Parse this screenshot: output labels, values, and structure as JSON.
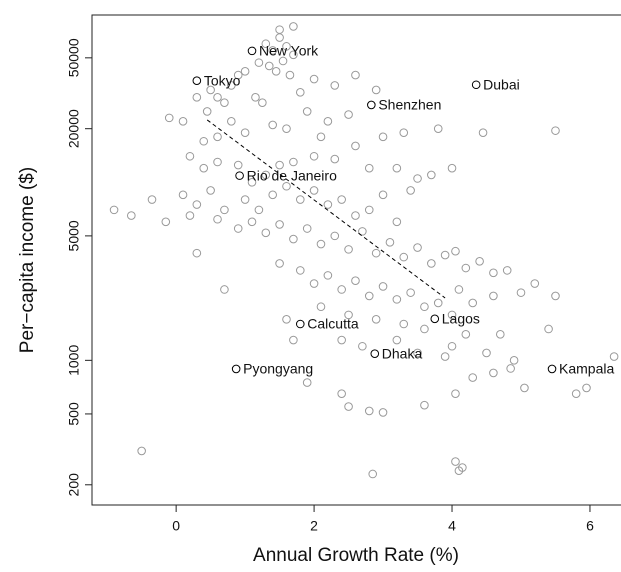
{
  "chart_data": {
    "type": "scatter",
    "x_label": "Annual Growth Rate (%)",
    "y_label": "Per−capita income ($)",
    "log_y": true,
    "xlim": [
      -1.22,
      6.45
    ],
    "ylim": [
      154,
      87000
    ],
    "xticks": [
      0,
      2,
      4,
      6
    ],
    "yticks": [
      200,
      500,
      1000,
      5000,
      20000,
      50000
    ],
    "series": [
      {
        "color": "#999999",
        "x": [
          1.3,
          1.4,
          1.5,
          1.6,
          1.55,
          1.45,
          1.65,
          1.35,
          1.2,
          1.7,
          1.0,
          0.9,
          0.8,
          1.5,
          1.7,
          1.15,
          1.25,
          0.6,
          0.5,
          0.7,
          0.45,
          0.3,
          1.8,
          2.0,
          2.3,
          2.6,
          2.9,
          1.9,
          2.2,
          2.5,
          2.1,
          1.6,
          1.4,
          1.0,
          0.8,
          0.6,
          0.4,
          -0.1,
          0.1,
          0.2,
          0.4,
          0.6,
          0.9,
          1.1,
          1.3,
          1.5,
          1.7,
          2.0,
          2.3,
          2.6,
          2.8,
          3.0,
          3.3,
          3.2,
          3.5,
          3.7,
          4.0,
          4.45,
          5.5,
          3.8,
          0.1,
          0.3,
          0.5,
          0.7,
          1.0,
          1.2,
          1.4,
          1.6,
          1.8,
          2.0,
          2.2,
          2.4,
          2.6,
          2.8,
          3.0,
          3.2,
          3.4,
          -0.9,
          -0.35,
          -0.65,
          -0.15,
          0.2,
          0.6,
          0.9,
          1.1,
          1.3,
          1.5,
          1.7,
          1.9,
          2.1,
          2.3,
          2.5,
          2.7,
          2.9,
          3.1,
          3.3,
          3.5,
          3.7,
          3.9,
          4.05,
          4.2,
          4.4,
          4.6,
          4.8,
          5.0,
          5.2,
          5.5,
          0.3,
          0.7,
          1.5,
          1.8,
          2.0,
          2.2,
          2.4,
          2.6,
          2.8,
          3.0,
          3.2,
          3.4,
          3.6,
          3.8,
          4.1,
          4.3,
          4.6,
          2.1,
          2.5,
          2.9,
          3.3,
          3.6,
          4.0,
          4.2,
          4.7,
          5.4,
          2.4,
          2.7,
          3.2,
          3.5,
          4.0,
          4.5,
          4.85,
          5.05,
          4.9,
          5.8,
          5.95,
          6.35,
          4.3,
          4.6,
          2.4,
          2.5,
          2.8,
          3.0,
          3.6,
          4.05,
          1.9,
          -0.5,
          2.85,
          4.05,
          4.15,
          4.1,
          1.6,
          1.7,
          3.9
        ],
        "values": [
          60000,
          55000,
          65000,
          58000,
          48000,
          42000,
          40000,
          45000,
          47000,
          52000,
          42000,
          40000,
          35000,
          72000,
          75000,
          30000,
          28000,
          30000,
          33000,
          28000,
          25000,
          30000,
          32000,
          38000,
          35000,
          40000,
          33000,
          25000,
          22000,
          24000,
          18000,
          20000,
          21000,
          19000,
          22000,
          18000,
          17000,
          23000,
          22000,
          14000,
          12000,
          13000,
          12500,
          10000,
          11000,
          12500,
          13000,
          14000,
          13500,
          16000,
          12000,
          18000,
          19000,
          12000,
          10500,
          11000,
          12000,
          19000,
          19500,
          20000,
          8500,
          7500,
          9000,
          7000,
          8000,
          7000,
          8500,
          9500,
          8000,
          9000,
          7500,
          8000,
          6500,
          7000,
          8500,
          6000,
          9000,
          7000,
          8000,
          6500,
          6000,
          6500,
          6200,
          5500,
          6000,
          5200,
          5800,
          4800,
          5500,
          4500,
          5000,
          4200,
          5300,
          4000,
          4600,
          3800,
          4300,
          3500,
          3900,
          4100,
          3300,
          3600,
          3100,
          3200,
          2400,
          2700,
          2300,
          4000,
          2500,
          3500,
          3200,
          2700,
          3000,
          2500,
          2800,
          2300,
          2600,
          2200,
          2400,
          2000,
          2100,
          2500,
          2100,
          2300,
          2000,
          1800,
          1700,
          1600,
          1500,
          1800,
          1400,
          1400,
          1500,
          1300,
          1200,
          1300,
          1100,
          1200,
          1100,
          900,
          700,
          1000,
          650,
          700,
          1050,
          800,
          850,
          650,
          550,
          520,
          510,
          560,
          650,
          750,
          310,
          230,
          270,
          250,
          240,
          1700,
          1300,
          1050
        ]
      },
      {
        "color": "#000000",
        "labels": [
          "New York",
          "Tokyo",
          "Dubai",
          "Shenzhen",
          "Rio de Janeiro",
          "Lagos",
          "Calcutta",
          "Dhaka",
          "Pyongyang",
          "Kampala"
        ],
        "x": [
          1.1,
          0.3,
          4.35,
          2.83,
          0.92,
          3.75,
          1.8,
          2.88,
          0.87,
          5.45
        ],
        "values": [
          54700,
          37200,
          35300,
          27200,
          10900,
          1710,
          1600,
          1090,
          895,
          895
        ]
      }
    ],
    "trend_line": {
      "color": "#000000",
      "x": [
        0.45,
        3.9
      ],
      "values": [
        22400,
        2240
      ]
    }
  }
}
